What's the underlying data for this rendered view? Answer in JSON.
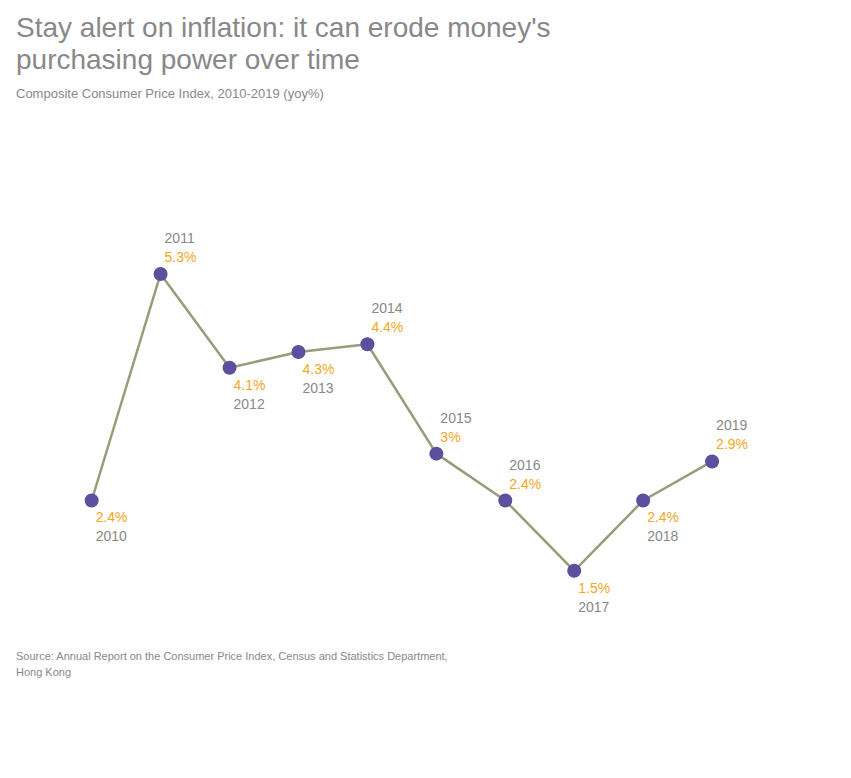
{
  "chart_data": {
    "type": "line",
    "title": "Stay alert on inflation: it can erode money's\npurchasing power over time",
    "subtitle": "Composite Consumer Price Index, 2010-2019 (yoy%)",
    "source": "Source: Annual Report on the Consumer Price Index, Census and Statistics Department,\nHong Kong",
    "x": [
      2010,
      2011,
      2012,
      2013,
      2014,
      2015,
      2016,
      2017,
      2018,
      2019
    ],
    "values": [
      2.4,
      5.3,
      4.1,
      4.3,
      4.4,
      3.0,
      2.4,
      1.5,
      2.4,
      2.9
    ],
    "value_labels": [
      "2.4%",
      "5.3%",
      "4.1%",
      "4.3%",
      "4.4%",
      "3%",
      "2.4%",
      "1.5%",
      "2.4%",
      "2.9%"
    ],
    "data_labels": true,
    "color": "#5B4F9E",
    "marker": "circle",
    "xlim": [
      2009.2,
      2020.5
    ],
    "ylim": [
      0.8,
      7.2
    ],
    "tick_labels": false,
    "grid": false
  }
}
